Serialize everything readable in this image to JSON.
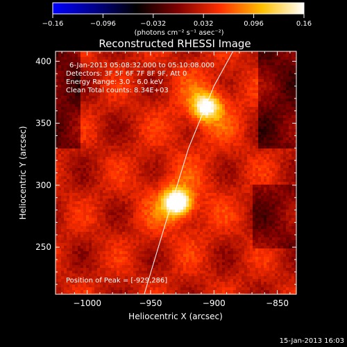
{
  "chart_data": {
    "type": "heatmap",
    "title": "Reconstructed RHESSI Image",
    "colorbar": {
      "range": [
        -0.16,
        0.16
      ],
      "tick_labels": [
        "−0.16",
        "−0.096",
        "−0.032",
        "0.032",
        "0.096",
        "0.16"
      ],
      "unit_label": "(photons cm⁻² s⁻¹ asec⁻²)",
      "colormap": [
        "#0000ff",
        "#00008a",
        "#000000",
        "#800000",
        "#ff3000",
        "#ffc000",
        "#ffffff"
      ]
    },
    "xlabel": "Heliocentric X (arcsec)",
    "ylabel": "Heliocentric Y (arcsec)",
    "xlim": [
      -1025,
      -835
    ],
    "ylim": [
      212,
      408
    ],
    "x_ticks": [
      -1000,
      -950,
      -900,
      -850
    ],
    "x_tick_labels": [
      "−1000",
      "−950",
      "−900",
      "−850"
    ],
    "y_ticks": [
      250,
      300,
      350,
      400
    ],
    "y_tick_labels": [
      "250",
      "300",
      "350",
      "400"
    ],
    "sources": [
      {
        "x": -929,
        "y": 286,
        "peak": 0.16
      },
      {
        "x": -906,
        "y": 363,
        "peak": 0.12
      }
    ],
    "limb_curve": [
      [
        -955,
        212
      ],
      [
        -938,
        270
      ],
      [
        -920,
        330
      ],
      [
        -900,
        380
      ],
      [
        -885,
        408
      ]
    ],
    "info_lines": [
      "6-Jan-2013 05:08:32.000 to 05:10:08.000",
      "Detectors: 3F 5F 6F 7F 8F 9F, Att 0",
      "Energy Range: 3.0 - 6.0 keV",
      "Clean    Total counts: 8.34E+03"
    ],
    "peak_label": "Position of Peak = [-929,286]",
    "footer_date": "15-Jan-2013 16:03"
  }
}
